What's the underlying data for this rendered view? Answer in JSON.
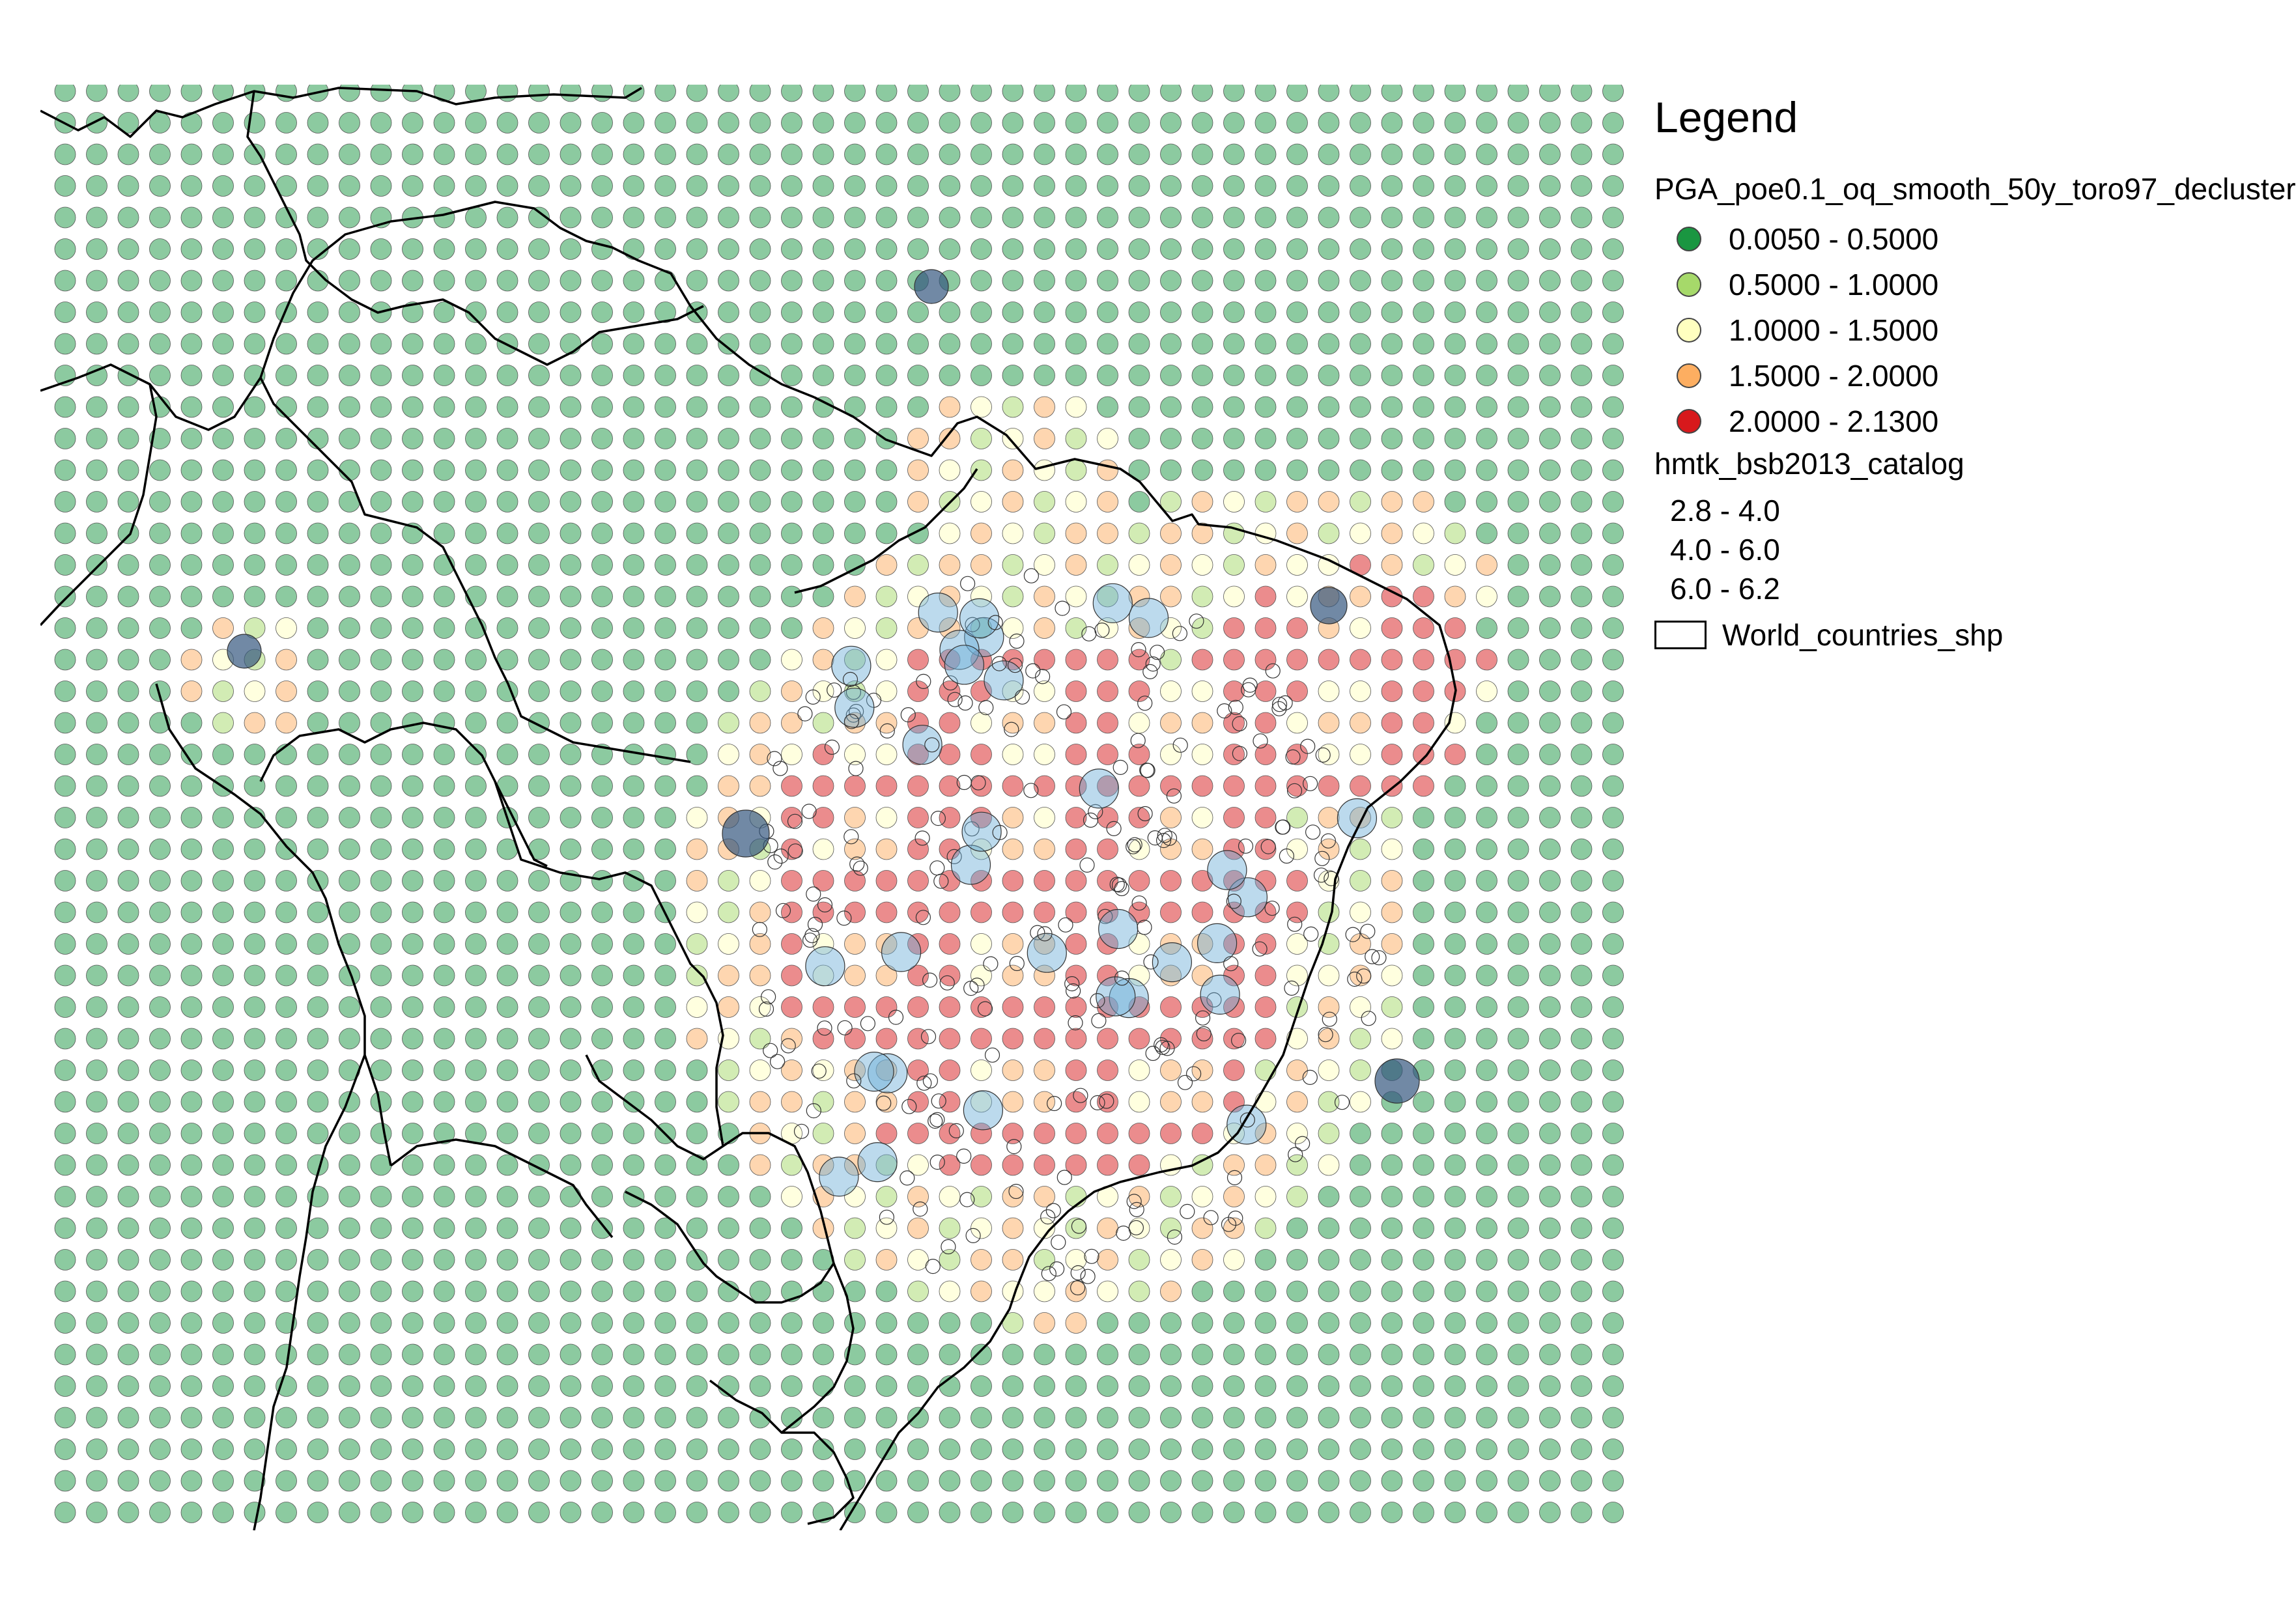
{
  "legend": {
    "title": "Legend",
    "hazard_layer": {
      "name": "PGA_poe0.1_oq_smooth_50y_toro97_decluster",
      "classes": [
        {
          "label": "0.0050 - 0.5000",
          "color": "#1a9641"
        },
        {
          "label": "0.5000 - 1.0000",
          "color": "#a6d96a"
        },
        {
          "label": "1.0000 - 1.5000",
          "color": "#ffffc0"
        },
        {
          "label": "1.5000 - 2.0000",
          "color": "#fdae61"
        },
        {
          "label": "2.0000 - 2.1300",
          "color": "#d7191c"
        }
      ]
    },
    "catalog_layer": {
      "name": "hmtk_bsb2013_catalog",
      "classes": [
        {
          "label": "2.8 - 4.0"
        },
        {
          "label": "4.0 - 6.0"
        },
        {
          "label": "6.0 - 6.2"
        }
      ],
      "color": "#6baed6"
    },
    "boundary_layer": {
      "name": "World_countries_shp"
    }
  }
}
